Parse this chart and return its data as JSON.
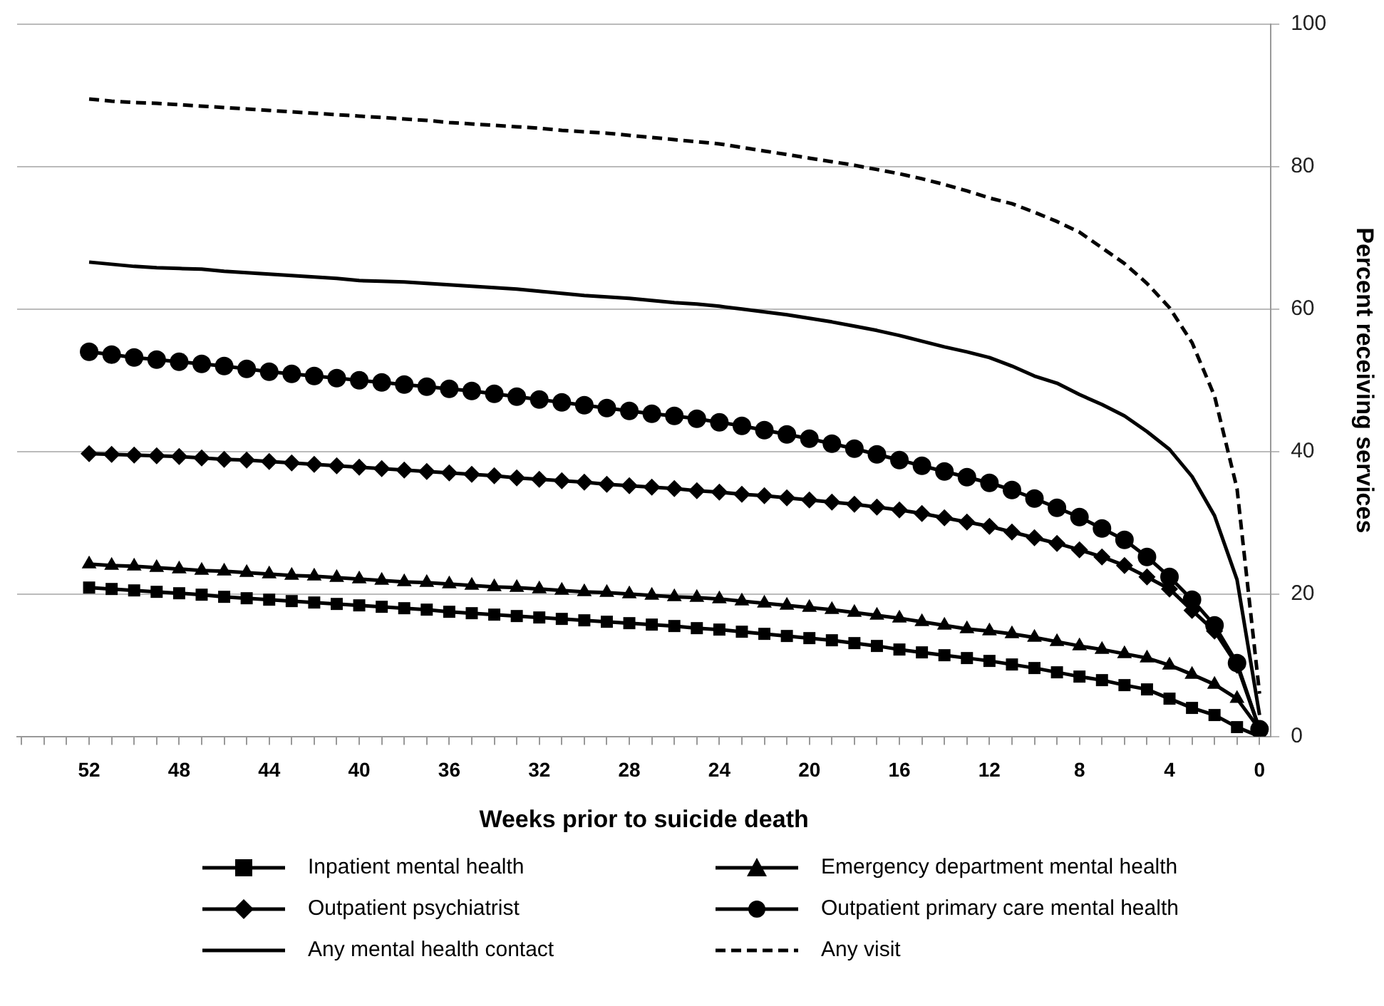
{
  "chart_data": {
    "type": "line",
    "xlabel": "Weeks prior to suicide death",
    "ylabel": "Percent receiving services",
    "x": [
      52,
      51,
      50,
      49,
      48,
      47,
      46,
      45,
      44,
      43,
      42,
      41,
      40,
      39,
      38,
      37,
      36,
      35,
      34,
      33,
      32,
      31,
      30,
      29,
      28,
      27,
      26,
      25,
      24,
      23,
      22,
      21,
      20,
      19,
      18,
      17,
      16,
      15,
      14,
      13,
      12,
      11,
      10,
      9,
      8,
      7,
      6,
      5,
      4,
      3,
      2,
      1,
      0
    ],
    "xlim": [
      55.2,
      -0.5
    ],
    "xticks": [
      {
        "value": 55,
        "label": null
      },
      {
        "value": 54,
        "label": null
      },
      {
        "value": 53,
        "label": null
      },
      52,
      {
        "value": 51,
        "label": null
      },
      {
        "value": 50,
        "label": null
      },
      {
        "value": 49,
        "label": null
      },
      48,
      {
        "value": 47,
        "label": null
      },
      {
        "value": 46,
        "label": null
      },
      {
        "value": 45,
        "label": null
      },
      44,
      {
        "value": 43,
        "label": null
      },
      {
        "value": 42,
        "label": null
      },
      {
        "value": 41,
        "label": null
      },
      40,
      {
        "value": 39,
        "label": null
      },
      {
        "value": 38,
        "label": null
      },
      {
        "value": 37,
        "label": null
      },
      36,
      {
        "value": 35,
        "label": null
      },
      {
        "value": 34,
        "label": null
      },
      {
        "value": 33,
        "label": null
      },
      32,
      {
        "value": 31,
        "label": null
      },
      {
        "value": 30,
        "label": null
      },
      {
        "value": 29,
        "label": null
      },
      28,
      {
        "value": 27,
        "label": null
      },
      {
        "value": 26,
        "label": null
      },
      {
        "value": 25,
        "label": null
      },
      24,
      {
        "value": 23,
        "label": null
      },
      {
        "value": 22,
        "label": null
      },
      {
        "value": 21,
        "label": null
      },
      20,
      {
        "value": 19,
        "label": null
      },
      {
        "value": 18,
        "label": null
      },
      {
        "value": 17,
        "label": null
      },
      16,
      {
        "value": 15,
        "label": null
      },
      {
        "value": 14,
        "label": null
      },
      {
        "value": 13,
        "label": null
      },
      12,
      {
        "value": 11,
        "label": null
      },
      {
        "value": 10,
        "label": null
      },
      {
        "value": 9,
        "label": null
      },
      8,
      {
        "value": 7,
        "label": null
      },
      {
        "value": 6,
        "label": null
      },
      {
        "value": 5,
        "label": null
      },
      4,
      {
        "value": 3,
        "label": null
      },
      {
        "value": 2,
        "label": null
      },
      {
        "value": 1,
        "label": null
      },
      0
    ],
    "ylim": [
      0,
      100
    ],
    "yticks": [
      0,
      20,
      40,
      60,
      80,
      100
    ],
    "grid": "y",
    "legend": "bottom",
    "series": [
      {
        "name": "Inpatient mental health",
        "color": "#000000",
        "marker": "square",
        "line_style": "solid",
        "values": [
          20.9,
          20.7,
          20.5,
          20.3,
          20.1,
          19.9,
          19.6,
          19.4,
          19.2,
          19.0,
          18.8,
          18.6,
          18.4,
          18.2,
          18.0,
          17.8,
          17.5,
          17.3,
          17.1,
          16.9,
          16.7,
          16.5,
          16.3,
          16.1,
          15.9,
          15.7,
          15.5,
          15.2,
          15.0,
          14.7,
          14.4,
          14.1,
          13.8,
          13.5,
          13.1,
          12.7,
          12.2,
          11.8,
          11.4,
          11.0,
          10.6,
          10.1,
          9.6,
          9.0,
          8.4,
          7.9,
          7.2,
          6.6,
          5.3,
          4.0,
          3.0,
          1.3,
          0
        ]
      },
      {
        "name": "Emergency department mental health",
        "color": "#000000",
        "marker": "triangle",
        "line_style": "solid",
        "values": [
          24.2,
          24.0,
          23.9,
          23.7,
          23.5,
          23.3,
          23.2,
          23.0,
          22.8,
          22.6,
          22.5,
          22.3,
          22.1,
          21.9,
          21.7,
          21.6,
          21.4,
          21.2,
          21.0,
          20.9,
          20.7,
          20.5,
          20.3,
          20.2,
          20.0,
          19.8,
          19.6,
          19.5,
          19.3,
          19.0,
          18.7,
          18.4,
          18.1,
          17.8,
          17.4,
          17.0,
          16.6,
          16.1,
          15.6,
          15.1,
          14.8,
          14.4,
          13.9,
          13.3,
          12.7,
          12.2,
          11.6,
          11.0,
          10.0,
          8.7,
          7.3,
          5.3,
          1
        ]
      },
      {
        "name": "Outpatient psychiatrist",
        "color": "#000000",
        "marker": "diamond",
        "line_style": "solid",
        "values": [
          39.7,
          39.6,
          39.5,
          39.4,
          39.3,
          39.1,
          38.9,
          38.8,
          38.6,
          38.4,
          38.2,
          38.0,
          37.8,
          37.6,
          37.4,
          37.2,
          37.0,
          36.8,
          36.6,
          36.3,
          36.1,
          35.9,
          35.7,
          35.4,
          35.2,
          35.0,
          34.8,
          34.5,
          34.3,
          34.0,
          33.8,
          33.5,
          33.2,
          32.9,
          32.6,
          32.2,
          31.8,
          31.3,
          30.7,
          30.1,
          29.5,
          28.7,
          27.9,
          27.1,
          26.2,
          25.2,
          24.0,
          22.4,
          20.7,
          17.7,
          14.8,
          10,
          1
        ]
      },
      {
        "name": "Outpatient primary care mental health",
        "color": "#000000",
        "marker": "circle",
        "line_style": "solid",
        "values": [
          54,
          53.6,
          53.2,
          52.9,
          52.6,
          52.3,
          52.0,
          51.6,
          51.2,
          50.9,
          50.6,
          50.3,
          50.0,
          49.7,
          49.4,
          49.1,
          48.8,
          48.5,
          48.1,
          47.7,
          47.3,
          46.9,
          46.5,
          46.1,
          45.7,
          45.3,
          45.0,
          44.6,
          44.1,
          43.6,
          43.0,
          42.4,
          41.8,
          41.1,
          40.4,
          39.6,
          38.8,
          38.0,
          37.2,
          36.4,
          35.6,
          34.6,
          33.4,
          32.1,
          30.8,
          29.2,
          27.6,
          25.2,
          22.4,
          19.2,
          15.6,
          10.3,
          1
        ]
      },
      {
        "name": "Any mental health contact",
        "color": "#000000",
        "marker": "none",
        "line_style": "solid",
        "values": [
          66.6,
          66.3,
          66.0,
          65.8,
          65.7,
          65.6,
          65.3,
          65.1,
          64.9,
          64.7,
          64.5,
          64.3,
          64.0,
          63.9,
          63.8,
          63.6,
          63.4,
          63.2,
          63.0,
          62.8,
          62.5,
          62.2,
          61.9,
          61.7,
          61.5,
          61.2,
          60.9,
          60.7,
          60.4,
          60.0,
          59.6,
          59.2,
          58.7,
          58.2,
          57.6,
          57.0,
          56.3,
          55.5,
          54.7,
          54.0,
          53.2,
          52.0,
          50.6,
          49.6,
          48.0,
          46.6,
          45.0,
          42.8,
          40.3,
          36.5,
          31,
          22,
          3
        ]
      },
      {
        "name": "Any visit",
        "color": "#000000",
        "marker": "none",
        "line_style": "dashed",
        "values": [
          89.5,
          89.2,
          89.0,
          88.9,
          88.7,
          88.5,
          88.3,
          88.1,
          87.9,
          87.7,
          87.5,
          87.3,
          87.1,
          86.9,
          86.7,
          86.5,
          86.2,
          86.0,
          85.8,
          85.6,
          85.4,
          85.1,
          84.9,
          84.7,
          84.4,
          84.1,
          83.8,
          83.5,
          83.2,
          82.7,
          82.2,
          81.7,
          81.2,
          80.7,
          80.2,
          79.6,
          79.0,
          78.3,
          77.5,
          76.6,
          75.6,
          74.8,
          73.6,
          72.3,
          70.8,
          68.6,
          66.4,
          63.6,
          60.2,
          55.3,
          47.8,
          34.8,
          6
        ]
      }
    ]
  }
}
